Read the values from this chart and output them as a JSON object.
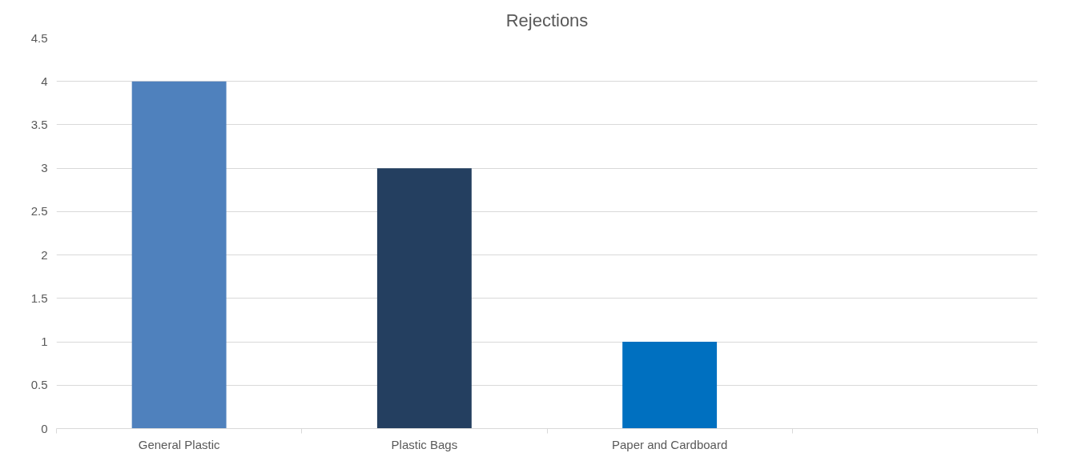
{
  "chart_data": {
    "type": "bar",
    "title": "Rejections",
    "categories": [
      "General Plastic",
      "Plastic Bags",
      "Paper and Cardboard",
      null
    ],
    "values": [
      4,
      3,
      1,
      null
    ],
    "colors": [
      "#4f81bd",
      "#243f60",
      "#0070c0",
      "#4f81bd"
    ],
    "ylim": [
      0,
      4.5
    ],
    "yticks": [
      0,
      0.5,
      1,
      1.5,
      2,
      2.5,
      3,
      3.5,
      4,
      4.5
    ],
    "grid": "y"
  }
}
